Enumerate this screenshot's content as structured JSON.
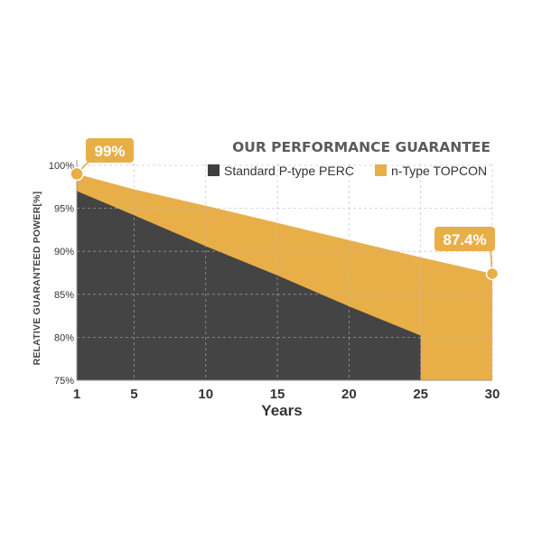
{
  "chart_data": {
    "type": "area",
    "title": "OUR PERFORMANCE GUARANTEE",
    "xlabel": "Years",
    "ylabel": "RELATIVE GUARANTEED POWER[%]",
    "x_ticks": [
      "1",
      "5",
      "10",
      "15",
      "20",
      "25",
      "30"
    ],
    "y_ticks": [
      "75%",
      "80%",
      "85%",
      "90%",
      "95%",
      "100%"
    ],
    "xlim": [
      1,
      30
    ],
    "ylim": [
      75,
      100
    ],
    "grid": true,
    "legend_position": "top-right",
    "series": [
      {
        "name": "Standard P-type PERC",
        "color": "#444444",
        "x": [
          1,
          5,
          10,
          15,
          20,
          25
        ],
        "y": [
          97,
          94.2,
          90.6,
          87.2,
          83.6,
          80.2
        ]
      },
      {
        "name": "n-Type TOPCON",
        "color": "#e8af49",
        "x": [
          1,
          5,
          10,
          15,
          20,
          25,
          30
        ],
        "y": [
          99,
          97.2,
          95.3,
          93.3,
          91.3,
          89.3,
          87.4
        ]
      }
    ],
    "annotations": [
      {
        "text": "99%",
        "x": 1,
        "y": 99
      },
      {
        "text": "87.4%",
        "x": 30,
        "y": 87.4
      }
    ]
  }
}
